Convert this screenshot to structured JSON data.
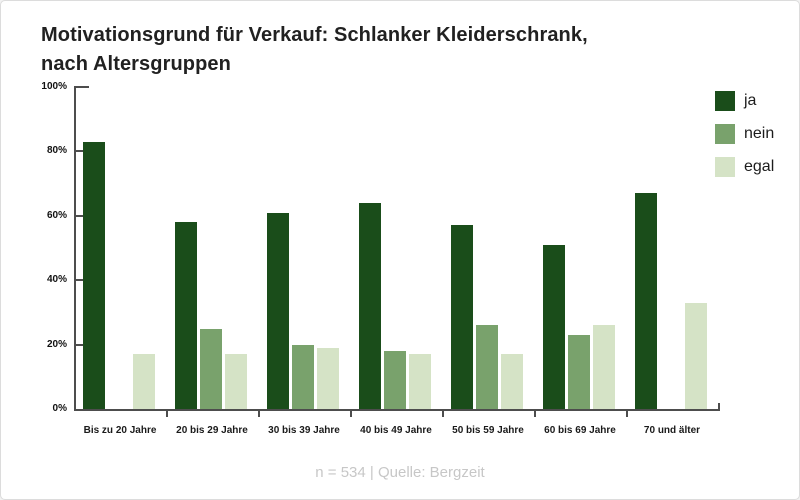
{
  "header": {
    "title_line1": "Motivationsgrund für Verkauf: Schlanker Kleiderschrank,",
    "title_line2": "nach Altersgruppen"
  },
  "footer": {
    "note": "n = 534 | Quelle: Bergzeit"
  },
  "colors": {
    "ja": "#1a4d1a",
    "nein": "#79a26c",
    "egal": "#d5e3c6",
    "axis": "#4d4d4d",
    "title_text": "#212121",
    "footer_text": "#c7c7c7"
  },
  "chart_data": {
    "type": "bar",
    "title": "Motivationsgrund für Verkauf: Schlanker Kleiderschrank, nach Altersgruppen",
    "categories": [
      "Bis zu 20 Jahre",
      "20 bis 29 Jahre",
      "30 bis 39 Jahre",
      "40 bis 49 Jahre",
      "50 bis 59 Jahre",
      "60 bis 69 Jahre",
      "70 und älter"
    ],
    "series": [
      {
        "name": "ja",
        "color": "#1a4d1a",
        "values": [
          83,
          58,
          61,
          64,
          57,
          51,
          67
        ]
      },
      {
        "name": "nein",
        "color": "#79a26c",
        "values": [
          0,
          25,
          20,
          18,
          26,
          23,
          0
        ]
      },
      {
        "name": "egal",
        "color": "#d5e3c6",
        "values": [
          17,
          17,
          19,
          17,
          17,
          26,
          33
        ]
      }
    ],
    "xlabel": "",
    "ylabel": "",
    "ylim": [
      0,
      100
    ],
    "yticks": [
      "0%",
      "20%",
      "40%",
      "60%",
      "80%",
      "100%"
    ],
    "grid": false,
    "legend_position": "top-right"
  }
}
